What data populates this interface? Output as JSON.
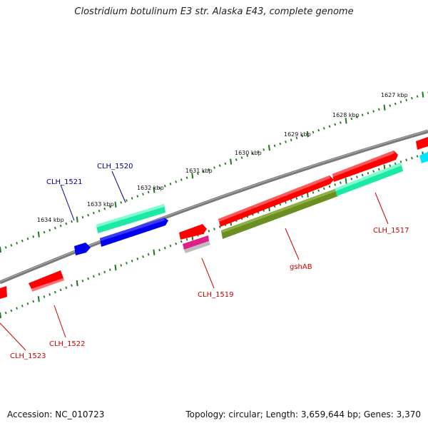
{
  "title": "Clostridium botulinum E3 str. Alaska E43, complete genome",
  "footer": {
    "accession": "Accession: NC_010723",
    "summary": "Topology: circular; Length: 3,659,644 bp; Genes: 3,370"
  },
  "scale_labels": [
    "1627 kbp",
    "1628 kbp",
    "1629 kbp",
    "1630 kbp",
    "1631 kbp",
    "1632 kbp",
    "1633 kbp",
    "1634 kbp"
  ],
  "gene_labels": [
    {
      "text": "CLH_1521",
      "color": "#00008b"
    },
    {
      "text": "CLH_1520",
      "color": "#00008b"
    },
    {
      "text": "CLH_1517",
      "color": "#cc0000"
    },
    {
      "text": "gshAB",
      "color": "#cc0000"
    },
    {
      "text": "CLH_1519",
      "color": "#cc0000"
    },
    {
      "text": "CLH_1522",
      "color": "#cc0000"
    },
    {
      "text": "CLH_1523",
      "color": "#cc0000"
    }
  ],
  "colors": {
    "backbone": "#777777",
    "tick": "#1a7a1a",
    "red": "#ff0000",
    "aquamarine": "#1de9a6",
    "blue": "#0000ee",
    "olive": "#6b8e23",
    "magenta": "#e0208a",
    "grey": "#bdbdbd",
    "cyan": "#00e5ff"
  }
}
